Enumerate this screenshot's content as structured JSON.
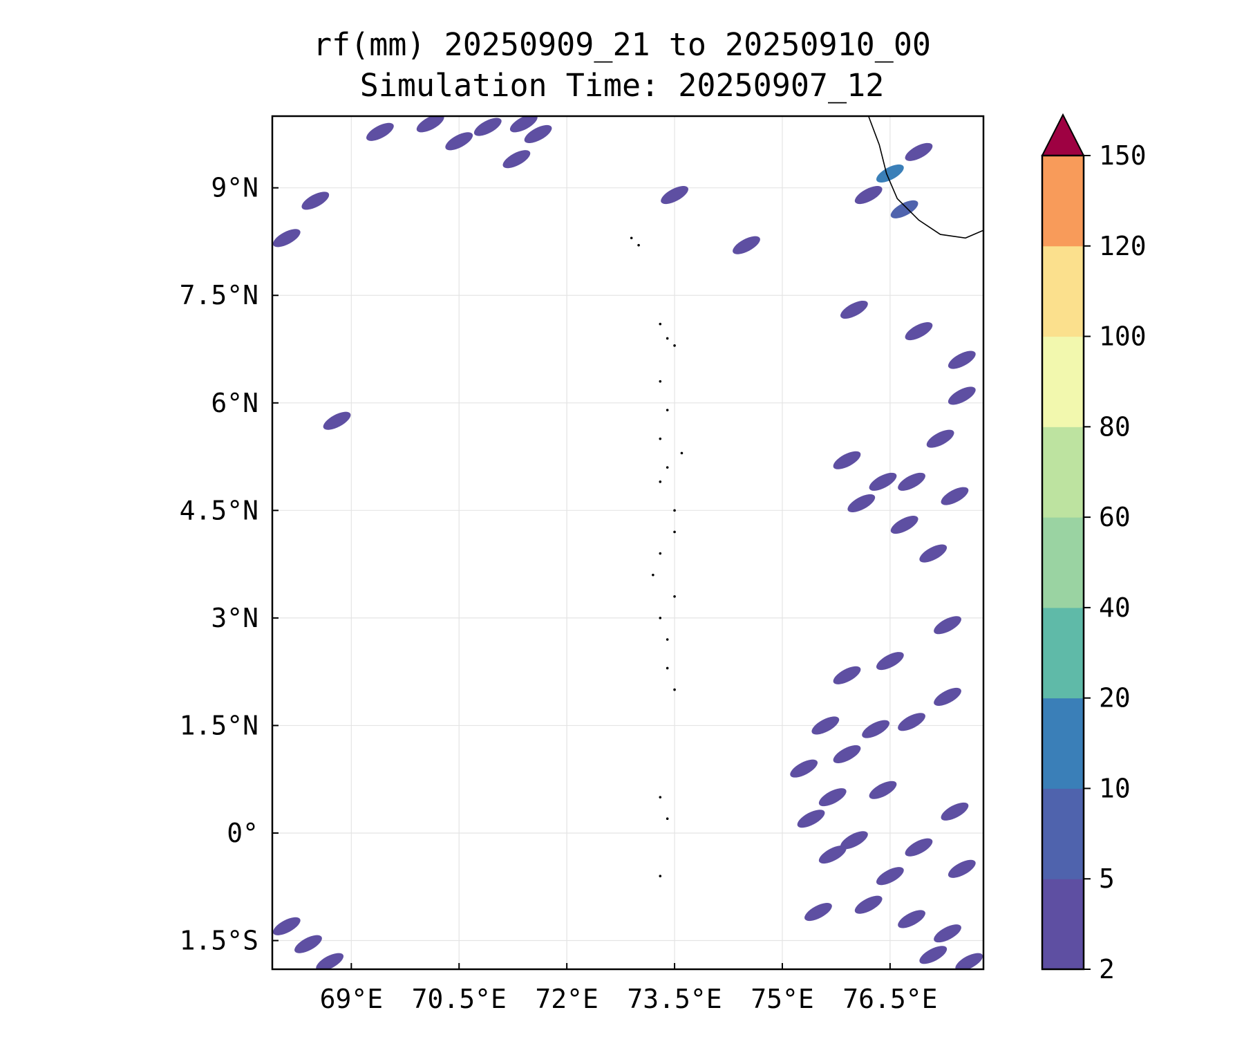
{
  "chart_data": {
    "type": "heatmap",
    "title": "rf(mm) 20250909_21 to 20250910_00",
    "subtitle": "Simulation Time: 20250907_12",
    "xlabel": "",
    "ylabel": "",
    "xlim": [
      67.9,
      77.8
    ],
    "ylim": [
      -1.9,
      10.0
    ],
    "grid": true,
    "x_ticks": [
      69,
      70.5,
      72,
      73.5,
      75,
      76.5
    ],
    "x_tick_labels": [
      "69°E",
      "70.5°E",
      "72°E",
      "73.5°E",
      "75°E",
      "76.5°E"
    ],
    "y_ticks": [
      -1.5,
      0,
      1.5,
      3,
      4.5,
      6,
      7.5,
      9
    ],
    "y_tick_labels": [
      "1.5°S",
      "0°",
      "1.5°N",
      "3°N",
      "4.5°N",
      "6°N",
      "7.5°N",
      "9°N"
    ],
    "colorbar": {
      "levels": [
        2,
        5,
        10,
        20,
        40,
        60,
        80,
        100,
        120,
        150
      ],
      "level_labels": [
        "2",
        "5",
        "10",
        "20",
        "40",
        "60",
        "80",
        "100",
        "120",
        "150"
      ],
      "colors": [
        "#5e4fa2",
        "#4f63ad",
        "#3a7fb8",
        "#5fbaa8",
        "#9ad3a2",
        "#bde3a0",
        "#f2f8ae",
        "#fbe08d",
        "#f89b5a",
        "#d73a4d"
      ],
      "extend_color": "#9e0142",
      "extend": "max"
    },
    "rain_cells": [
      {
        "lon": 69.4,
        "lat": 9.78,
        "level": 0
      },
      {
        "lon": 70.1,
        "lat": 9.9,
        "level": 0
      },
      {
        "lon": 70.9,
        "lat": 9.85,
        "level": 0
      },
      {
        "lon": 71.4,
        "lat": 9.9,
        "level": 0
      },
      {
        "lon": 71.6,
        "lat": 9.75,
        "level": 0
      },
      {
        "lon": 70.5,
        "lat": 9.65,
        "level": 0
      },
      {
        "lon": 71.3,
        "lat": 9.4,
        "level": 0
      },
      {
        "lon": 68.5,
        "lat": 8.82,
        "level": 0
      },
      {
        "lon": 68.1,
        "lat": 8.3,
        "level": 0
      },
      {
        "lon": 73.5,
        "lat": 8.9,
        "level": 0
      },
      {
        "lon": 74.5,
        "lat": 8.2,
        "level": 0
      },
      {
        "lon": 68.8,
        "lat": 5.75,
        "level": 0
      },
      {
        "lon": 68.1,
        "lat": -1.3,
        "level": 0
      },
      {
        "lon": 68.4,
        "lat": -1.55,
        "level": 0
      },
      {
        "lon": 68.7,
        "lat": -1.8,
        "level": 0
      },
      {
        "lon": 76.5,
        "lat": 9.2,
        "level": 2
      },
      {
        "lon": 76.7,
        "lat": 8.7,
        "level": 1
      },
      {
        "lon": 76.2,
        "lat": 8.9,
        "level": 0
      },
      {
        "lon": 76.9,
        "lat": 9.5,
        "level": 0
      },
      {
        "lon": 76.0,
        "lat": 7.3,
        "level": 0
      },
      {
        "lon": 76.9,
        "lat": 7.0,
        "level": 0
      },
      {
        "lon": 77.5,
        "lat": 6.6,
        "level": 0
      },
      {
        "lon": 77.5,
        "lat": 6.1,
        "level": 0
      },
      {
        "lon": 77.2,
        "lat": 5.5,
        "level": 0
      },
      {
        "lon": 76.8,
        "lat": 4.9,
        "level": 0
      },
      {
        "lon": 77.4,
        "lat": 4.7,
        "level": 0
      },
      {
        "lon": 76.4,
        "lat": 4.9,
        "level": 0
      },
      {
        "lon": 75.9,
        "lat": 5.2,
        "level": 0
      },
      {
        "lon": 76.1,
        "lat": 4.6,
        "level": 0
      },
      {
        "lon": 76.7,
        "lat": 4.3,
        "level": 0
      },
      {
        "lon": 77.1,
        "lat": 3.9,
        "level": 0
      },
      {
        "lon": 77.3,
        "lat": 2.9,
        "level": 0
      },
      {
        "lon": 76.5,
        "lat": 2.4,
        "level": 0
      },
      {
        "lon": 75.9,
        "lat": 2.2,
        "level": 0
      },
      {
        "lon": 77.3,
        "lat": 1.9,
        "level": 0
      },
      {
        "lon": 76.8,
        "lat": 1.55,
        "level": 0
      },
      {
        "lon": 76.3,
        "lat": 1.45,
        "level": 0
      },
      {
        "lon": 75.6,
        "lat": 1.5,
        "level": 0
      },
      {
        "lon": 75.9,
        "lat": 1.1,
        "level": 0
      },
      {
        "lon": 75.3,
        "lat": 0.9,
        "level": 0
      },
      {
        "lon": 76.4,
        "lat": 0.6,
        "level": 0
      },
      {
        "lon": 75.7,
        "lat": 0.5,
        "level": 0
      },
      {
        "lon": 77.4,
        "lat": 0.3,
        "level": 0
      },
      {
        "lon": 75.4,
        "lat": 0.2,
        "level": 0
      },
      {
        "lon": 76.0,
        "lat": -0.1,
        "level": 0
      },
      {
        "lon": 76.9,
        "lat": -0.2,
        "level": 0
      },
      {
        "lon": 75.7,
        "lat": -0.3,
        "level": 0
      },
      {
        "lon": 76.5,
        "lat": -0.6,
        "level": 0
      },
      {
        "lon": 77.5,
        "lat": -0.5,
        "level": 0
      },
      {
        "lon": 75.5,
        "lat": -1.1,
        "level": 0
      },
      {
        "lon": 76.8,
        "lat": -1.2,
        "level": 0
      },
      {
        "lon": 77.3,
        "lat": -1.4,
        "level": 0
      },
      {
        "lon": 77.1,
        "lat": -1.7,
        "level": 0
      },
      {
        "lon": 76.2,
        "lat": -1.0,
        "level": 0
      },
      {
        "lon": 77.6,
        "lat": -1.8,
        "level": 0
      }
    ]
  }
}
